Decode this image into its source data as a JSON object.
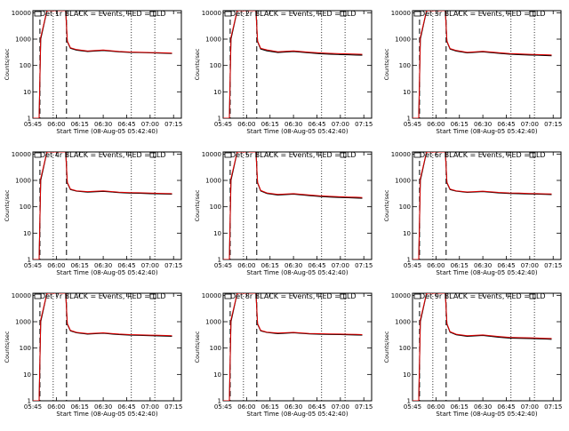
{
  "colors": {
    "events": "#000000",
    "lld": "#e00000",
    "background": "#ffffff"
  },
  "xtick_labels": [
    "05:45",
    "06:00",
    "06:15",
    "06:30",
    "06:45",
    "07:00",
    "07:15"
  ],
  "ytick_labels": [
    "1",
    "10",
    "100",
    "1000",
    "10000"
  ],
  "xlabel": "Start Time (08-Aug-05 05:42:40)",
  "ylabel": "Counts/sec",
  "chart_data": [
    {
      "type": "line",
      "title": "Det 1r BLACK = Events, RED = LLD",
      "yscale": "log",
      "ylim": [
        1,
        12000
      ],
      "xlim": [
        0,
        95
      ],
      "markers": {
        "dashed": [
          4.5,
          21.5
        ],
        "dotted": [
          13,
          63,
          78
        ]
      },
      "x": [
        0,
        2,
        3,
        4,
        5,
        9,
        13,
        19,
        21,
        22,
        24,
        28,
        35,
        45,
        55,
        62,
        68,
        75,
        80,
        85,
        89
      ],
      "series": [
        {
          "name": "Events",
          "values": [
            1,
            1,
            1,
            1,
            1000,
            12000,
            12000,
            12000,
            12000,
            800,
            450,
            380,
            340,
            370,
            330,
            315,
            310,
            300,
            295,
            290,
            285
          ]
        },
        {
          "name": "LLD",
          "values": [
            1,
            1,
            1,
            1,
            1200,
            12000,
            12000,
            12000,
            12000,
            850,
            470,
            400,
            355,
            385,
            340,
            325,
            320,
            310,
            305,
            300,
            295
          ]
        }
      ]
    },
    {
      "type": "line",
      "title": "Det 2r BLACK = Events, RED = LLD",
      "yscale": "log",
      "ylim": [
        1,
        12000
      ],
      "xlim": [
        0,
        95
      ],
      "markers": {
        "dashed": [
          4.5,
          21.5
        ],
        "dotted": [
          13,
          63,
          78
        ]
      },
      "x": [
        0,
        2,
        3,
        4,
        5,
        9,
        13,
        19,
        21,
        22,
        24,
        28,
        35,
        45,
        55,
        62,
        68,
        75,
        80,
        85,
        89
      ],
      "series": [
        {
          "name": "Events",
          "values": [
            1,
            1,
            1,
            1,
            1000,
            12000,
            12000,
            12000,
            12000,
            800,
            420,
            360,
            310,
            340,
            300,
            280,
            270,
            260,
            255,
            250,
            245
          ]
        },
        {
          "name": "LLD",
          "values": [
            1,
            1,
            1,
            1,
            1200,
            12000,
            12000,
            12000,
            12000,
            850,
            450,
            390,
            330,
            360,
            320,
            300,
            290,
            280,
            275,
            270,
            265
          ]
        }
      ]
    },
    {
      "type": "line",
      "title": "Det 3r BLACK = Events, RED = LLD",
      "yscale": "log",
      "ylim": [
        1,
        12000
      ],
      "xlim": [
        0,
        95
      ],
      "markers": {
        "dashed": [
          4.5,
          21.5
        ],
        "dotted": [
          13,
          63,
          78
        ]
      },
      "x": [
        0,
        2,
        3,
        4,
        5,
        9,
        13,
        19,
        21,
        22,
        24,
        28,
        35,
        45,
        55,
        62,
        68,
        75,
        80,
        85,
        89
      ],
      "series": [
        {
          "name": "Events",
          "values": [
            1,
            1,
            1,
            1,
            1000,
            12000,
            12000,
            12000,
            12000,
            800,
            420,
            350,
            300,
            330,
            290,
            270,
            260,
            250,
            245,
            240,
            235
          ]
        },
        {
          "name": "LLD",
          "values": [
            1,
            1,
            1,
            1,
            1200,
            12000,
            12000,
            12000,
            12000,
            850,
            440,
            370,
            315,
            345,
            305,
            285,
            275,
            265,
            260,
            255,
            250
          ]
        }
      ]
    },
    {
      "type": "line",
      "title": "Det 4r BLACK = Events, RED = LLD",
      "yscale": "log",
      "ylim": [
        1,
        12000
      ],
      "xlim": [
        0,
        95
      ],
      "markers": {
        "dashed": [
          4.5,
          21.5
        ],
        "dotted": [
          13,
          63,
          78
        ]
      },
      "x": [
        0,
        2,
        3,
        4,
        5,
        9,
        13,
        19,
        21,
        22,
        24,
        28,
        35,
        45,
        55,
        62,
        68,
        75,
        80,
        85,
        89
      ],
      "series": [
        {
          "name": "Events",
          "values": [
            1,
            1,
            1,
            1,
            1000,
            12000,
            12000,
            12000,
            12000,
            800,
            450,
            390,
            360,
            385,
            345,
            330,
            325,
            315,
            310,
            305,
            300
          ]
        },
        {
          "name": "LLD",
          "values": [
            1,
            1,
            1,
            1,
            1200,
            12000,
            12000,
            12000,
            12000,
            850,
            470,
            405,
            375,
            400,
            360,
            345,
            340,
            330,
            325,
            320,
            315
          ]
        }
      ]
    },
    {
      "type": "line",
      "title": "Det 5r BLACK = Events, RED = LLD",
      "yscale": "log",
      "ylim": [
        1,
        12000
      ],
      "xlim": [
        0,
        95
      ],
      "markers": {
        "dashed": [
          4.5,
          21.5
        ],
        "dotted": [
          13,
          63,
          78
        ]
      },
      "x": [
        0,
        2,
        3,
        4,
        5,
        9,
        13,
        19,
        21,
        22,
        24,
        28,
        35,
        45,
        55,
        62,
        68,
        75,
        80,
        85,
        89
      ],
      "series": [
        {
          "name": "Events",
          "values": [
            1,
            1,
            1,
            1,
            1000,
            12000,
            12000,
            12000,
            12000,
            800,
            400,
            320,
            280,
            300,
            265,
            245,
            235,
            225,
            220,
            215,
            210
          ]
        },
        {
          "name": "LLD",
          "values": [
            1,
            1,
            1,
            1,
            1200,
            12000,
            12000,
            12000,
            12000,
            850,
            420,
            335,
            295,
            315,
            280,
            260,
            250,
            240,
            235,
            230,
            225
          ]
        }
      ]
    },
    {
      "type": "line",
      "title": "Det 6r BLACK = Events, RED = LLD",
      "yscale": "log",
      "ylim": [
        1,
        12000
      ],
      "xlim": [
        0,
        95
      ],
      "markers": {
        "dashed": [
          4.5,
          21.5
        ],
        "dotted": [
          13,
          63,
          78
        ]
      },
      "x": [
        0,
        2,
        3,
        4,
        5,
        9,
        13,
        19,
        21,
        22,
        24,
        28,
        35,
        45,
        55,
        62,
        68,
        75,
        80,
        85,
        89
      ],
      "series": [
        {
          "name": "Events",
          "values": [
            1,
            1,
            1,
            1,
            1000,
            12000,
            12000,
            12000,
            12000,
            800,
            450,
            390,
            350,
            375,
            335,
            320,
            315,
            305,
            300,
            295,
            290
          ]
        },
        {
          "name": "LLD",
          "values": [
            1,
            1,
            1,
            1,
            1200,
            12000,
            12000,
            12000,
            12000,
            850,
            470,
            405,
            365,
            390,
            350,
            335,
            330,
            320,
            315,
            310,
            305
          ]
        }
      ]
    },
    {
      "type": "line",
      "title": "Det 7r BLACK = Events, RED = LLD",
      "yscale": "log",
      "ylim": [
        1,
        12000
      ],
      "xlim": [
        0,
        95
      ],
      "markers": {
        "dashed": [
          4.5,
          21.5
        ],
        "dotted": [
          13,
          63,
          78
        ]
      },
      "x": [
        0,
        2,
        3,
        4,
        5,
        9,
        13,
        19,
        21,
        22,
        24,
        28,
        35,
        45,
        55,
        62,
        68,
        75,
        80,
        85,
        89
      ],
      "series": [
        {
          "name": "Events",
          "values": [
            1,
            1,
            1,
            1,
            1000,
            12000,
            12000,
            12000,
            12000,
            800,
            450,
            380,
            340,
            365,
            325,
            310,
            305,
            295,
            290,
            285,
            280
          ]
        },
        {
          "name": "LLD",
          "values": [
            1,
            1,
            1,
            1,
            1200,
            12000,
            12000,
            12000,
            12000,
            850,
            470,
            395,
            355,
            380,
            340,
            325,
            320,
            310,
            305,
            300,
            295
          ]
        }
      ]
    },
    {
      "type": "line",
      "title": "Det 8r BLACK = Events, RED = LLD",
      "yscale": "log",
      "ylim": [
        1,
        12000
      ],
      "xlim": [
        0,
        95
      ],
      "markers": {
        "dashed": [
          4.5,
          21.5
        ],
        "dotted": [
          13,
          63,
          78
        ]
      },
      "x": [
        0,
        2,
        3,
        4,
        5,
        9,
        13,
        19,
        21,
        22,
        24,
        28,
        35,
        45,
        55,
        62,
        68,
        75,
        80,
        85,
        89
      ],
      "series": [
        {
          "name": "Events",
          "values": [
            1,
            1,
            1,
            1,
            1000,
            12000,
            12000,
            12000,
            12000,
            800,
            450,
            390,
            355,
            380,
            345,
            335,
            330,
            325,
            320,
            315,
            310
          ]
        },
        {
          "name": "LLD",
          "values": [
            1,
            1,
            1,
            1,
            1200,
            12000,
            12000,
            12000,
            12000,
            850,
            470,
            405,
            370,
            395,
            360,
            350,
            345,
            340,
            335,
            330,
            325
          ]
        }
      ]
    },
    {
      "type": "line",
      "title": "Det 9r BLACK = Events, RED = LLD",
      "yscale": "log",
      "ylim": [
        1,
        12000
      ],
      "xlim": [
        0,
        95
      ],
      "markers": {
        "dashed": [
          4.5,
          21.5
        ],
        "dotted": [
          13,
          63,
          78
        ]
      },
      "x": [
        0,
        2,
        3,
        4,
        5,
        9,
        13,
        19,
        21,
        22,
        24,
        28,
        35,
        45,
        55,
        62,
        68,
        75,
        80,
        85,
        89
      ],
      "series": [
        {
          "name": "Events",
          "values": [
            1,
            1,
            1,
            1,
            1000,
            12000,
            12000,
            12000,
            12000,
            800,
            400,
            320,
            280,
            300,
            260,
            240,
            235,
            230,
            225,
            220,
            215
          ]
        },
        {
          "name": "LLD",
          "values": [
            1,
            1,
            1,
            1,
            1200,
            12000,
            12000,
            12000,
            12000,
            850,
            420,
            335,
            295,
            315,
            275,
            255,
            250,
            245,
            240,
            235,
            230
          ]
        }
      ]
    }
  ]
}
